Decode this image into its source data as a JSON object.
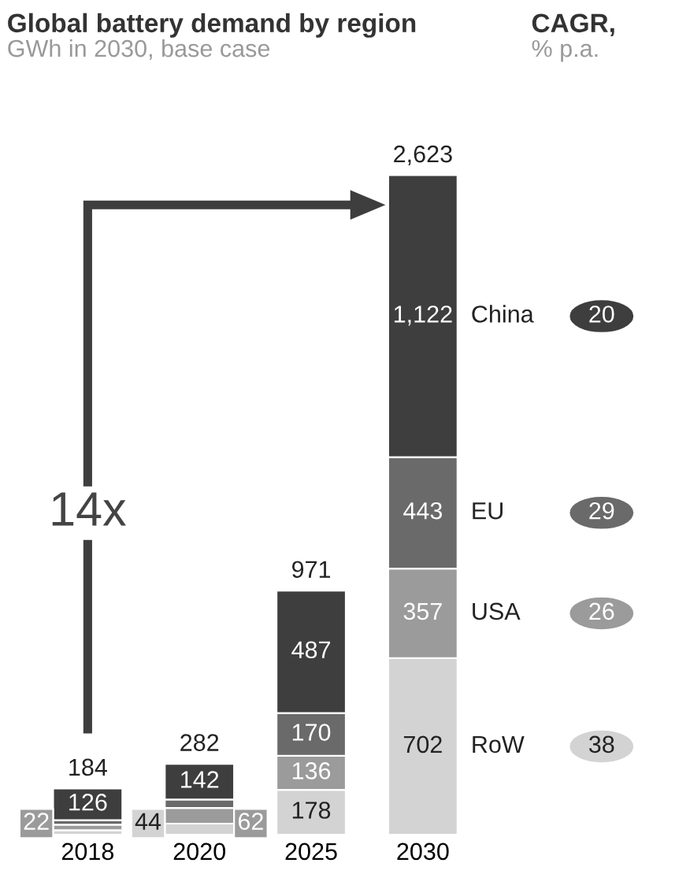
{
  "chart_data": {
    "type": "bar",
    "title": "Global battery demand by region",
    "subtitle": "GWh in 2030, base case",
    "categories": [
      "2018",
      "2020",
      "2025",
      "2030"
    ],
    "stacked": true,
    "legend": "right",
    "grid": false,
    "series": [
      {
        "name": "RoW",
        "color": "#d3d3d3",
        "values": [
          18,
          44,
          178,
          702
        ],
        "value_labels": [
          null,
          "44",
          "178",
          "702"
        ]
      },
      {
        "name": "USA",
        "color": "#9b9b9b",
        "values": [
          22,
          62,
          136,
          357
        ],
        "value_labels": [
          "22",
          "62",
          "136",
          "357"
        ]
      },
      {
        "name": "EU",
        "color": "#6a6a6a",
        "values": [
          18,
          34,
          170,
          443
        ],
        "value_labels": [
          null,
          null,
          "170",
          "443"
        ]
      },
      {
        "name": "China",
        "color": "#3e3e3e",
        "values": [
          126,
          142,
          487,
          1122
        ],
        "value_labels": [
          "126",
          "142",
          "487",
          "1,122"
        ]
      }
    ],
    "totals": [
      "184",
      "282",
      "971",
      "2,623"
    ],
    "annotations": [
      "14x",
      "CAGR,",
      "% p.a.",
      "38",
      "26",
      "29",
      "20"
    ]
  }
}
